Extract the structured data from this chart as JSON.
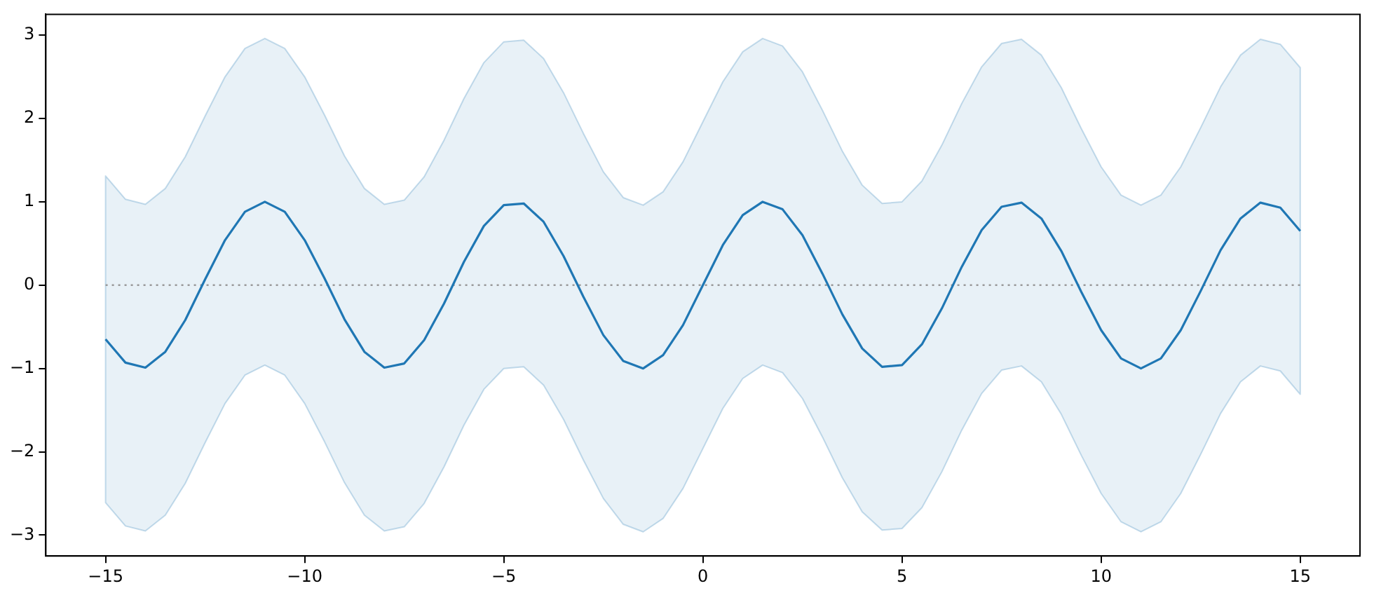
{
  "chart_data": {
    "type": "line",
    "x": [
      -15,
      -14.5,
      -14,
      -13.5,
      -13,
      -12.5,
      -12,
      -11.5,
      -11,
      -10.5,
      -10,
      -9.5,
      -9,
      -8.5,
      -8,
      -7.5,
      -7,
      -6.5,
      -6,
      -5.5,
      -5,
      -4.5,
      -4,
      -3.5,
      -3,
      -2.5,
      -2,
      -1.5,
      -1,
      -0.5,
      0,
      0.5,
      1,
      1.5,
      2,
      2.5,
      3,
      3.5,
      4,
      4.5,
      5,
      5.5,
      6,
      6.5,
      7,
      7.5,
      8,
      8.5,
      9,
      9.5,
      10,
      10.5,
      11,
      11.5,
      12,
      12.5,
      13,
      13.5,
      14,
      14.5,
      15
    ],
    "series": [
      {
        "color": "#1f77b4",
        "values": [
          -0.65,
          -0.93,
          -0.99,
          -0.8,
          -0.42,
          0.07,
          0.54,
          0.88,
          1.0,
          0.88,
          0.54,
          0.08,
          -0.41,
          -0.8,
          -0.99,
          -0.94,
          -0.66,
          -0.22,
          0.28,
          0.71,
          0.96,
          0.98,
          0.76,
          0.35,
          -0.14,
          -0.6,
          -0.91,
          -1.0,
          -0.84,
          -0.48,
          0,
          0.48,
          0.84,
          1.0,
          0.91,
          0.6,
          0.14,
          -0.35,
          -0.76,
          -0.98,
          -0.96,
          -0.71,
          -0.28,
          0.22,
          0.66,
          0.94,
          0.99,
          0.8,
          0.41,
          -0.08,
          -0.54,
          -0.88,
          -1.0,
          -0.88,
          -0.54,
          -0.07,
          0.42,
          0.8,
          0.99,
          0.93,
          0.65
        ],
        "upper": [
          1.31,
          1.03,
          0.97,
          1.16,
          1.54,
          2.03,
          2.5,
          2.84,
          2.96,
          2.84,
          2.5,
          2.04,
          1.55,
          1.16,
          0.97,
          1.02,
          1.3,
          1.74,
          2.24,
          2.67,
          2.92,
          2.94,
          2.72,
          2.31,
          1.82,
          1.36,
          1.05,
          0.96,
          1.12,
          1.48,
          1.96,
          2.44,
          2.8,
          2.96,
          2.87,
          2.56,
          2.1,
          1.61,
          1.2,
          0.98,
          1.0,
          1.25,
          1.68,
          2.18,
          2.62,
          2.9,
          2.95,
          2.76,
          2.37,
          1.88,
          1.42,
          1.08,
          0.96,
          1.08,
          1.42,
          1.89,
          2.38,
          2.76,
          2.95,
          2.89,
          2.61
        ],
        "lower": [
          -2.61,
          -2.89,
          -2.95,
          -2.76,
          -2.38,
          -1.89,
          -1.42,
          -1.08,
          -0.96,
          -1.08,
          -1.42,
          -1.88,
          -2.37,
          -2.76,
          -2.95,
          -2.9,
          -2.62,
          -2.18,
          -1.68,
          -1.25,
          -1.0,
          -0.98,
          -1.2,
          -1.61,
          -2.1,
          -2.56,
          -2.87,
          -2.96,
          -2.8,
          -2.44,
          -1.96,
          -1.48,
          -1.12,
          -0.96,
          -1.05,
          -1.36,
          -1.82,
          -2.31,
          -2.72,
          -2.94,
          -2.92,
          -2.67,
          -2.24,
          -1.74,
          -1.3,
          -1.02,
          -0.97,
          -1.16,
          -1.55,
          -2.04,
          -2.5,
          -2.84,
          -2.96,
          -2.84,
          -2.5,
          -2.03,
          -1.54,
          -1.16,
          -0.97,
          -1.03,
          -1.31
        ]
      }
    ],
    "xlim": [
      -16.5,
      16.5
    ],
    "ylim": [
      -3.25,
      3.25
    ],
    "xticks": [
      -15,
      -10,
      -5,
      0,
      5,
      10,
      15
    ],
    "yticks": [
      -3,
      -2,
      -1,
      0,
      1,
      2,
      3
    ],
    "ref_lines": [
      {
        "axis": "y",
        "value": 0,
        "color": "#999999",
        "line_style": "dotted"
      }
    ],
    "legend": false
  }
}
